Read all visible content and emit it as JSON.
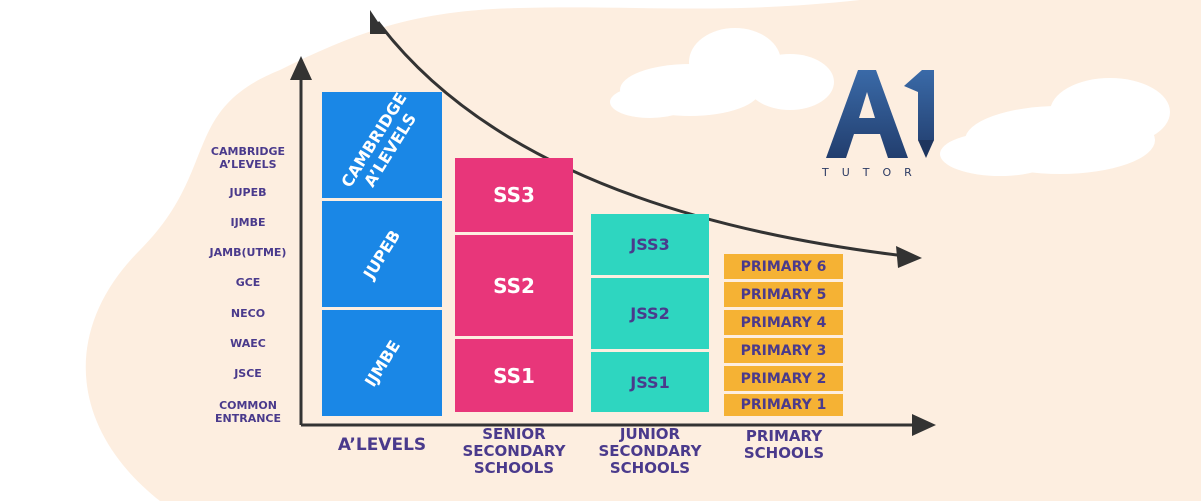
{
  "colors": {
    "alevel": "#1a87e6",
    "senior": "#e8367a",
    "junior": "#2ed6c0",
    "primary": "#f5b234",
    "axis": "#333333",
    "text": "#4a3a8c",
    "primary_text": "#4a3a8c",
    "logo": "#2d4f86"
  },
  "exams": [
    "CAMBRIDGE A’LEVELS",
    "JUPEB",
    "IJMBE",
    "JAMB(UTME)",
    "GCE",
    "NECO",
    "WAEC",
    "JSCE",
    "COMMON ENTRANCE"
  ],
  "groups": [
    {
      "category": "A’LEVELS",
      "levels": [
        "CAMBRIDGE A’LEVELS",
        "JUPEB",
        "IJMBE"
      ]
    },
    {
      "category": "SENIOR SECONDARY SCHOOLS",
      "levels": [
        "SS3",
        "SS2",
        "SS1"
      ]
    },
    {
      "category": "JUNIOR SECONDARY SCHOOLS",
      "levels": [
        "JSS3",
        "JSS2",
        "JSS1"
      ]
    },
    {
      "category": "PRIMARY SCHOOLS",
      "levels": [
        "PRIMARY 6",
        "PRIMARY 5",
        "PRIMARY 4",
        "PRIMARY 3",
        "PRIMARY 2",
        "PRIMARY 1"
      ]
    }
  ],
  "logo": {
    "mark": "A1",
    "tagline": "TUTOR"
  }
}
